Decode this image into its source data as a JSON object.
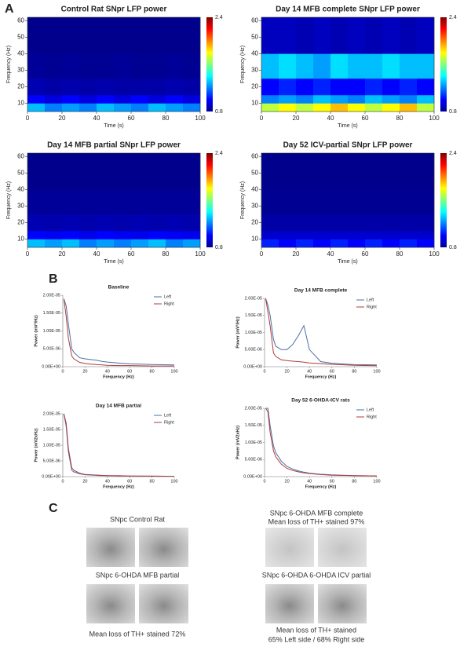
{
  "panel_labels": [
    "A",
    "B",
    "C"
  ],
  "chart_data": [
    {
      "type": "heatmap",
      "title": "Control Rat SNpr LFP power",
      "x_label": "Time (s)",
      "y_label": "Frequency (Hz)",
      "xlim": [
        0,
        100
      ],
      "ylim": [
        5,
        62
      ],
      "xticks": [
        0,
        20,
        40,
        60,
        80,
        100
      ],
      "yticks": [
        10,
        20,
        30,
        40,
        50,
        60
      ],
      "xbins": [
        0,
        10,
        20,
        30,
        40,
        50,
        60,
        70,
        80,
        90,
        100
      ],
      "ybins": [
        5,
        10,
        15,
        25,
        40,
        62
      ],
      "zlim": [
        0.8,
        2.4
      ],
      "zticks": [
        0.8,
        2.4
      ],
      "z": [
        [
          1.3,
          1.2,
          1.25,
          1.2,
          1.3,
          1.25,
          1.2,
          1.3,
          1.25,
          1.2
        ],
        [
          1.0,
          0.95,
          1.0,
          0.95,
          1.0,
          0.95,
          1.0,
          0.95,
          1.0,
          0.95
        ],
        [
          0.88,
          0.86,
          0.87,
          0.86,
          0.87,
          0.86,
          0.86,
          0.86,
          0.87,
          0.86
        ],
        [
          0.84,
          0.83,
          0.84,
          0.83,
          0.83,
          0.84,
          0.83,
          0.83,
          0.84,
          0.83
        ],
        [
          0.82,
          0.82,
          0.82,
          0.82,
          0.82,
          0.82,
          0.82,
          0.82,
          0.82,
          0.82
        ]
      ]
    },
    {
      "type": "heatmap",
      "title": "Day 14 MFB complete SNpr LFP power",
      "x_label": "Time (s)",
      "y_label": "Frequency (Hz)",
      "xlim": [
        0,
        100
      ],
      "ylim": [
        5,
        62
      ],
      "xticks": [
        0,
        20,
        40,
        60,
        80,
        100
      ],
      "yticks": [
        10,
        20,
        30,
        40,
        50,
        60
      ],
      "xbins": [
        0,
        10,
        20,
        30,
        40,
        50,
        60,
        70,
        80,
        90,
        100
      ],
      "ybins": [
        5,
        10,
        15,
        25,
        40,
        62
      ],
      "zlim": [
        0.8,
        2.4
      ],
      "zticks": [
        0.8,
        2.4
      ],
      "z": [
        [
          1.7,
          1.8,
          1.7,
          1.8,
          1.9,
          1.8,
          1.7,
          1.8,
          1.9,
          1.7
        ],
        [
          1.2,
          1.25,
          1.2,
          1.3,
          1.25,
          1.2,
          1.3,
          1.25,
          1.2,
          1.3
        ],
        [
          1.0,
          1.05,
          1.0,
          1.05,
          1.0,
          1.0,
          1.05,
          1.0,
          1.05,
          1.0
        ],
        [
          1.3,
          1.35,
          1.3,
          1.25,
          1.35,
          1.3,
          1.3,
          1.35,
          1.3,
          1.3
        ],
        [
          0.9,
          0.9,
          0.88,
          0.9,
          0.88,
          0.9,
          0.88,
          0.9,
          0.88,
          0.9
        ]
      ]
    },
    {
      "type": "heatmap",
      "title": "Day 14 MFB partial  SNpr LFP power",
      "x_label": "Time (s)",
      "y_label": "Frequency (Hz)",
      "xlim": [
        0,
        100
      ],
      "ylim": [
        5,
        62
      ],
      "xticks": [
        0,
        20,
        40,
        60,
        80,
        100
      ],
      "yticks": [
        10,
        20,
        30,
        40,
        50,
        60
      ],
      "xbins": [
        0,
        10,
        20,
        30,
        40,
        50,
        60,
        70,
        80,
        90,
        100
      ],
      "ybins": [
        5,
        10,
        15,
        25,
        40,
        62
      ],
      "zlim": [
        0.8,
        2.4
      ],
      "zticks": [
        0.8,
        2.4
      ],
      "z": [
        [
          1.3,
          1.25,
          1.3,
          1.2,
          1.25,
          1.2,
          1.25,
          1.3,
          1.2,
          1.25
        ],
        [
          1.0,
          0.98,
          1.0,
          0.97,
          1.0,
          0.98,
          0.97,
          1.0,
          0.98,
          0.97
        ],
        [
          0.88,
          0.87,
          0.88,
          0.87,
          0.88,
          0.87,
          0.88,
          0.87,
          0.88,
          0.87
        ],
        [
          0.84,
          0.84,
          0.84,
          0.84,
          0.84,
          0.84,
          0.84,
          0.84,
          0.84,
          0.84
        ],
        [
          0.82,
          0.82,
          0.82,
          0.82,
          0.82,
          0.82,
          0.82,
          0.82,
          0.82,
          0.82
        ]
      ]
    },
    {
      "type": "heatmap",
      "title": "Day 52 ICV-partial  SNpr LFP power",
      "x_label": "Time (s)",
      "y_label": "Frequency (Hz)",
      "xlim": [
        0,
        100
      ],
      "ylim": [
        5,
        62
      ],
      "xticks": [
        0,
        20,
        40,
        60,
        80,
        100
      ],
      "yticks": [
        10,
        20,
        30,
        40,
        50,
        60
      ],
      "xbins": [
        0,
        10,
        20,
        30,
        40,
        50,
        60,
        70,
        80,
        90,
        100
      ],
      "ybins": [
        5,
        10,
        15,
        25,
        40,
        62
      ],
      "zlim": [
        0.8,
        2.4
      ],
      "zticks": [
        0.8,
        2.4
      ],
      "z": [
        [
          1.05,
          1.0,
          1.05,
          1.0,
          1.05,
          1.0,
          1.05,
          1.0,
          1.05,
          1.0
        ],
        [
          0.92,
          0.92,
          0.92,
          0.92,
          0.92,
          0.92,
          0.92,
          0.92,
          0.92,
          0.92
        ],
        [
          0.86,
          0.86,
          0.86,
          0.86,
          0.86,
          0.86,
          0.86,
          0.86,
          0.86,
          0.86
        ],
        [
          0.83,
          0.83,
          0.83,
          0.83,
          0.83,
          0.83,
          0.83,
          0.83,
          0.83,
          0.83
        ],
        [
          0.82,
          0.82,
          0.82,
          0.82,
          0.82,
          0.82,
          0.82,
          0.82,
          0.82,
          0.82
        ]
      ]
    },
    {
      "type": "line",
      "title": "Baseline",
      "x_label": "Frequency (Hz)",
      "y_label": "Power (mV²/Hz)",
      "xlim": [
        0,
        100
      ],
      "ylim": [
        0,
        2e-05
      ],
      "xticks": [
        0,
        20,
        40,
        60,
        80,
        100
      ],
      "yticks": [
        {
          "value": 0,
          "label": "0.00E+00"
        },
        {
          "value": 5e-06,
          "label": "5.00E-06"
        },
        {
          "value": 1e-05,
          "label": "1.00E-05"
        },
        {
          "value": 1.5e-05,
          "label": "1.50E-05"
        },
        {
          "value": 2e-05,
          "label": "2.00E-05"
        }
      ],
      "x": [
        1,
        3,
        5,
        8,
        10,
        15,
        20,
        25,
        30,
        35,
        40,
        50,
        60,
        80,
        100
      ],
      "series": [
        {
          "name": "Left",
          "color": "#4a6fa5",
          "values": [
            1.9e-05,
            1.7e-05,
            1.2e-05,
            5e-06,
            4e-06,
            2.5e-06,
            2.2e-06,
            2e-06,
            1.8e-06,
            1.5e-06,
            1.3e-06,
            1e-06,
            8e-07,
            6e-07,
            5e-07
          ]
        },
        {
          "name": "Right",
          "color": "#b03a3a",
          "values": [
            1.9e-05,
            1.4e-05,
            8e-06,
            3e-06,
            2.2e-06,
            1.2e-06,
            9e-07,
            7e-07,
            6e-07,
            5e-07,
            4e-07,
            3e-07,
            3e-07,
            2e-07,
            2e-07
          ]
        }
      ]
    },
    {
      "type": "line",
      "title": "Day 14 MFB complete",
      "x_label": "Frequency (Hz)",
      "y_label": "Power (mV²/Hz)",
      "xlim": [
        0,
        100
      ],
      "ylim": [
        0,
        2e-05
      ],
      "xticks": [
        0,
        20,
        40,
        60,
        80,
        100
      ],
      "yticks": [
        {
          "value": 0,
          "label": "0.00E+00"
        },
        {
          "value": 5e-06,
          "label": "5.00E-06"
        },
        {
          "value": 1e-05,
          "label": "1.00E-05"
        },
        {
          "value": 1.5e-05,
          "label": "1.50E-05"
        },
        {
          "value": 2e-05,
          "label": "2.00E-05"
        }
      ],
      "x": [
        1,
        3,
        5,
        8,
        10,
        15,
        20,
        25,
        30,
        35,
        40,
        50,
        60,
        80,
        100
      ],
      "series": [
        {
          "name": "Left",
          "color": "#4a6fa5",
          "values": [
            2e-05,
            1.8e-05,
            1.5e-05,
            8e-06,
            6e-06,
            5e-06,
            5e-06,
            6.5e-06,
            9e-06,
            1.2e-05,
            5e-06,
            1.5e-06,
            1e-06,
            6e-07,
            5e-07
          ]
        },
        {
          "name": "Right",
          "color": "#b03a3a",
          "values": [
            2e-05,
            1.6e-05,
            1.2e-05,
            4e-06,
            3e-06,
            2e-06,
            1.8e-06,
            1.6e-06,
            1.5e-06,
            1.3e-06,
            1.1e-06,
            9e-07,
            7e-07,
            4e-07,
            3e-07
          ]
        }
      ]
    },
    {
      "type": "line",
      "title": "Day 14 MFB partial",
      "x_label": "Frequency (Hz)",
      "y_label": "Power (mV2xHz)",
      "xlim": [
        0,
        100
      ],
      "ylim": [
        0,
        2e-05
      ],
      "xticks": [
        0,
        20,
        40,
        60,
        80,
        100
      ],
      "yticks": [
        {
          "value": 0,
          "label": "0.00E+00"
        },
        {
          "value": 5e-06,
          "label": "5.00E-06"
        },
        {
          "value": 1e-05,
          "label": "1.00E-05"
        },
        {
          "value": 1.5e-05,
          "label": "1.50E-05"
        },
        {
          "value": 2e-05,
          "label": "2.00E-05"
        }
      ],
      "x": [
        1,
        3,
        5,
        8,
        10,
        15,
        20,
        25,
        30,
        35,
        40,
        50,
        60,
        80,
        100
      ],
      "series": [
        {
          "name": "Left",
          "color": "#4a6fa5",
          "values": [
            2e-05,
            1.6e-05,
            8e-06,
            2e-06,
            1.5e-06,
            9e-07,
            6e-07,
            5e-07,
            4e-07,
            3e-07,
            3e-07,
            2e-07,
            2e-07,
            1e-07,
            1e-07
          ]
        },
        {
          "name": "Right",
          "color": "#b03a3a",
          "values": [
            2e-05,
            1.7e-05,
            9e-06,
            2.8e-06,
            2e-06,
            1.1e-06,
            7e-07,
            6e-07,
            5e-07,
            4e-07,
            3e-07,
            3e-07,
            2e-07,
            2e-07,
            1e-07
          ]
        }
      ]
    },
    {
      "type": "line",
      "title": "Day 52 6-OHDA-ICV rats",
      "x_label": "Frequency (Hz)",
      "y_label": "Power (mV2xHz)",
      "xlim": [
        0,
        100
      ],
      "ylim": [
        0,
        2e-05
      ],
      "xticks": [
        0,
        20,
        40,
        60,
        80,
        100
      ],
      "yticks": [
        {
          "value": 0,
          "label": "0.00E+00"
        },
        {
          "value": 5e-06,
          "label": "5.00E-06"
        },
        {
          "value": 1e-05,
          "label": "1.00E-05"
        },
        {
          "value": 1.5e-05,
          "label": "1.50E-05"
        },
        {
          "value": 2e-05,
          "label": "2.00E-05"
        }
      ],
      "x": [
        1,
        3,
        5,
        8,
        10,
        15,
        20,
        25,
        30,
        35,
        40,
        50,
        60,
        80,
        100
      ],
      "series": [
        {
          "name": "Left",
          "color": "#4a6fa5",
          "values": [
            2e-05,
            2e-05,
            1.5e-05,
            9e-06,
            7e-06,
            4.5e-06,
            3e-06,
            2.2e-06,
            1.7e-06,
            1.3e-06,
            1e-06,
            7e-07,
            5e-07,
            3e-07,
            2e-07
          ]
        },
        {
          "name": "Right",
          "color": "#b03a3a",
          "values": [
            2e-05,
            1.9e-05,
            1.3e-05,
            7.5e-06,
            5.8e-06,
            3.6e-06,
            2.4e-06,
            1.8e-06,
            1.4e-06,
            1.1e-06,
            9e-07,
            6e-07,
            4e-07,
            3e-07,
            2e-07
          ]
        }
      ]
    }
  ],
  "histology": [
    {
      "title": [
        "SNpc Control Rat"
      ],
      "caption": []
    },
    {
      "title": [
        "SNpc 6-OHDA MFB complete",
        "Mean loss of TH+ stained 97%"
      ],
      "caption": []
    },
    {
      "title": [
        "SNpc 6-OHDA MFB partial"
      ],
      "caption": [
        "Mean loss of TH+ stained 72%"
      ]
    },
    {
      "title": [
        "SNpc 6-OHDA 6-OHDA ICV partial"
      ],
      "caption": [
        "Mean loss of TH+ stained",
        "65% Left side / 68% Right side"
      ]
    }
  ]
}
